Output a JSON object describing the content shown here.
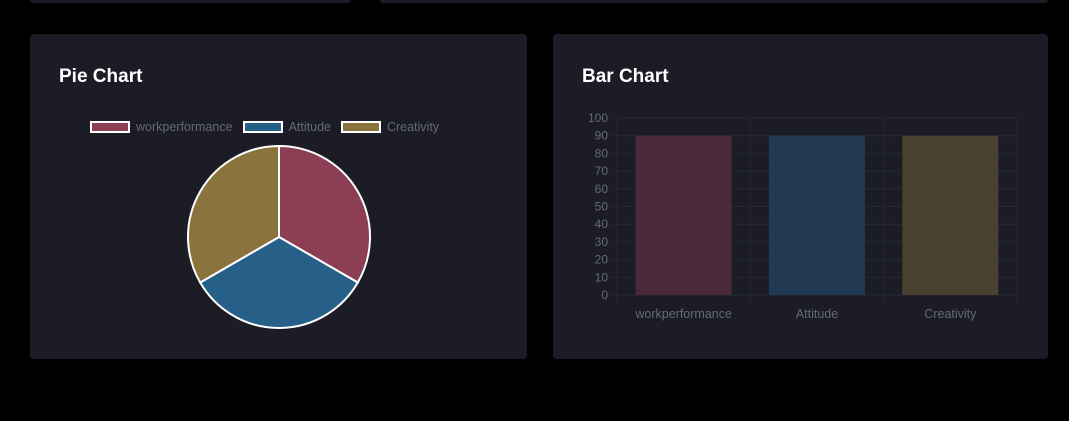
{
  "cards": {
    "pie": {
      "title": "Pie Chart"
    },
    "bar": {
      "title": "Bar Chart"
    }
  },
  "colors": {
    "background": "#000000",
    "card": "#1b1c25",
    "grid": "#262833",
    "tick_text": "#666a72",
    "slice_border": "#ffffff"
  },
  "chart_data": [
    {
      "type": "pie",
      "title": "",
      "legend_position": "top",
      "labels": [
        "workperformance",
        "Attitude",
        "Creativity"
      ],
      "values": [
        90,
        90,
        90
      ],
      "colors": [
        "#8b3e54",
        "#266089",
        "#8b733d"
      ]
    },
    {
      "type": "bar",
      "title": "",
      "categories": [
        "workperformance",
        "Attitude",
        "Creativity"
      ],
      "values": [
        90,
        90,
        90
      ],
      "colors": [
        "#4b2b3b",
        "#223a54",
        "#494130"
      ],
      "ylim": [
        0,
        100
      ],
      "yticks": [
        0,
        10,
        20,
        30,
        40,
        50,
        60,
        70,
        80,
        90,
        100
      ],
      "grid": true,
      "xlabel": "",
      "ylabel": ""
    }
  ]
}
